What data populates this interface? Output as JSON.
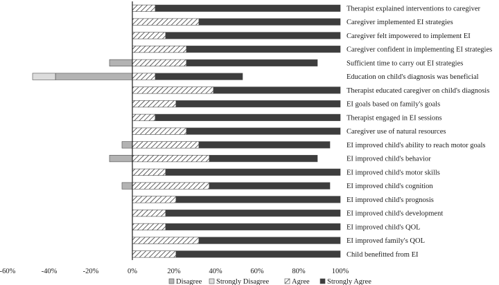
{
  "chart_data": {
    "type": "bar",
    "orientation": "horizontal",
    "stacked": true,
    "title": "",
    "xlabel": "",
    "ylabel": "",
    "xlim": [
      -60,
      100
    ],
    "xticks": [
      "-60%",
      "-40%",
      "-20%",
      "0%",
      "20%",
      "40%",
      "60%",
      "80%",
      "100%"
    ],
    "tick_values": [
      -60,
      -40,
      -20,
      0,
      20,
      40,
      60,
      80,
      100
    ],
    "legend_position": "bottom",
    "categories": [
      "Therapist explained interventions to caregiver",
      "Caregiver implemented EI strategies",
      "Caregiver felt impowered to implement EI",
      "Caregiver confident in implementing EI strategies",
      "Sufficient time to carry out EI strategies",
      "Education on child's diagnosis was beneficial",
      "Therapist educated caregiver on child's diagnosis",
      "EI goals based on family's goals",
      "Therapist engaged in EI sessions",
      "Caregiver use of natural resources",
      "EI improved child's ability to reach motor goals",
      "EI improved child's behavior",
      "EI improved child's motor skills",
      "EI improved child's cognition",
      "EI improved child's prognosis",
      "EI improved child's development",
      "EI improved child's QOL",
      "EI improved family's QOL",
      "Child benefitted from EI"
    ],
    "series": [
      {
        "name": "Disagree",
        "color": "#b3b3b3",
        "side": "negative",
        "values": [
          0,
          0,
          0,
          0,
          -11,
          -37,
          0,
          0,
          0,
          0,
          -5,
          -11,
          0,
          -5,
          0,
          0,
          0,
          0,
          0
        ]
      },
      {
        "name": "Strongly Disagree",
        "color": "#dcdcdc",
        "side": "negative",
        "values": [
          0,
          0,
          0,
          0,
          0,
          -11,
          0,
          0,
          0,
          0,
          0,
          0,
          0,
          0,
          0,
          0,
          0,
          0,
          0
        ]
      },
      {
        "name": "Agree",
        "color": "hatch",
        "side": "positive",
        "values": [
          11,
          32,
          16,
          26,
          26,
          11,
          39,
          21,
          11,
          26,
          32,
          37,
          16,
          37,
          21,
          16,
          16,
          32,
          21
        ]
      },
      {
        "name": "Strongly Agree",
        "color": "#3d3d3d",
        "side": "positive",
        "values": [
          89,
          68,
          84,
          74,
          63,
          42,
          61,
          79,
          89,
          74,
          63,
          52,
          84,
          58,
          79,
          84,
          84,
          68,
          79
        ]
      }
    ],
    "legend": [
      "Disagree",
      "Strongly Disagree",
      "Agree",
      "Strongly Agree"
    ]
  }
}
